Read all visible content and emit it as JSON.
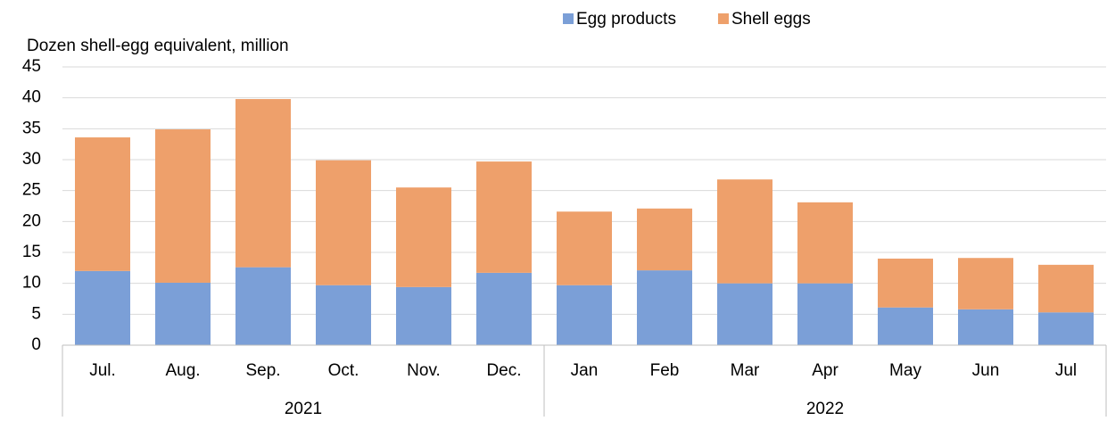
{
  "chart_data": {
    "type": "stacked_bar",
    "y_axis_label": "Dozen shell-egg equivalent, million",
    "categories": [
      "Jul.",
      "Aug.",
      "Sep.",
      "Oct.",
      "Nov.",
      "Dec.",
      "Jan",
      "Feb",
      "Mar",
      "Apr",
      "May",
      "Jun",
      "Jul"
    ],
    "category_groups": [
      {
        "label": "2021",
        "size": 6
      },
      {
        "label": "2022",
        "size": 7
      }
    ],
    "series": [
      {
        "name": "Egg products",
        "color": "#7b9fd7",
        "values": [
          12.0,
          10.1,
          12.6,
          9.7,
          9.4,
          11.7,
          9.7,
          12.1,
          10.0,
          10.0,
          6.1,
          5.8,
          5.3
        ]
      },
      {
        "name": "Shell eggs",
        "color": "#eea06b",
        "values": [
          21.6,
          24.8,
          27.2,
          20.2,
          16.1,
          18.0,
          11.9,
          10.0,
          16.8,
          13.1,
          7.9,
          8.3,
          7.7
        ]
      }
    ],
    "ylim": [
      0,
      45
    ],
    "yticks": [
      0,
      5,
      10,
      15,
      20,
      25,
      30,
      35,
      40,
      45
    ],
    "grid": true,
    "legend": "top"
  }
}
